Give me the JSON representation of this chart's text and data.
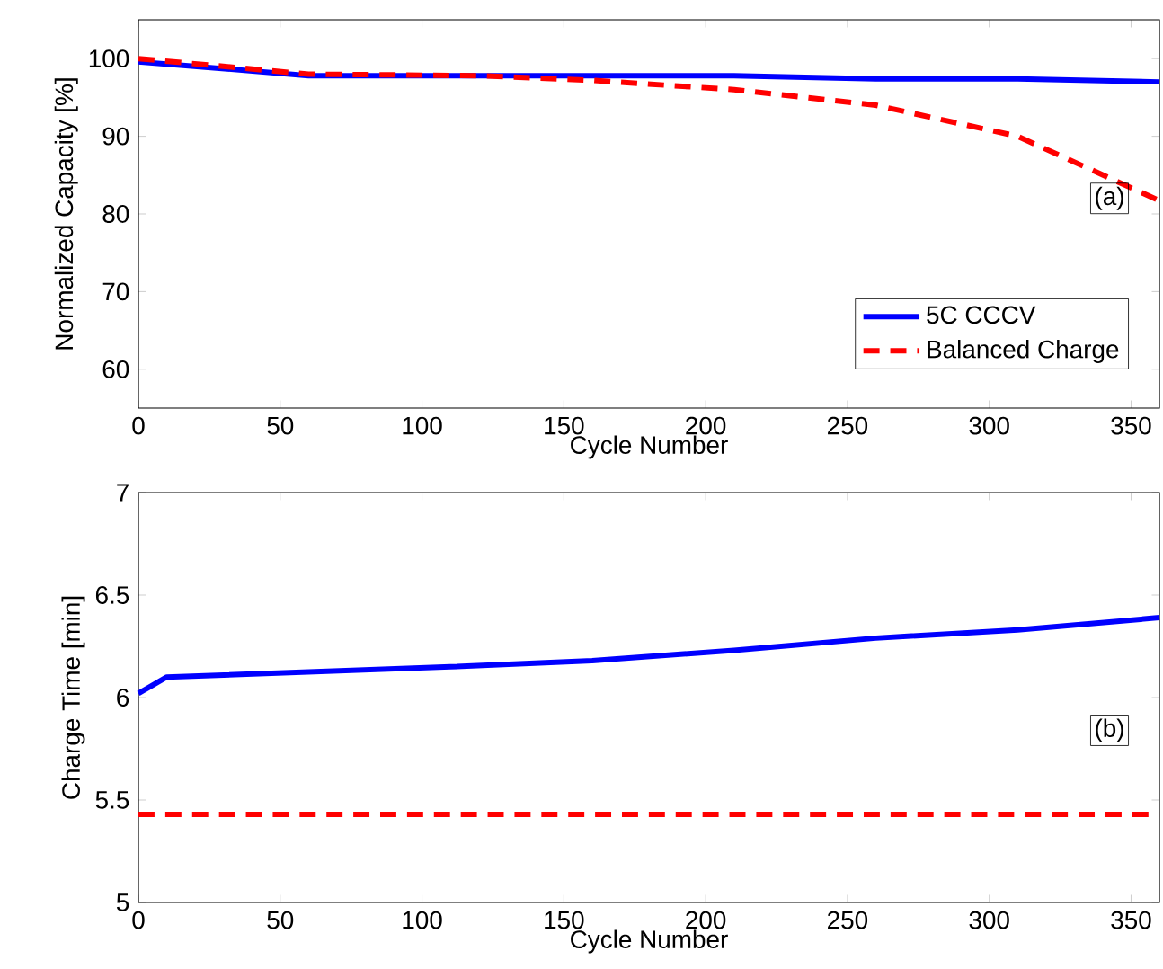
{
  "chart_data": [
    {
      "type": "line",
      "xlabel": "Cycle Number",
      "ylabel": "Normalized Capacity [%]",
      "xlim": [
        0,
        360
      ],
      "ylim": [
        55,
        105
      ],
      "xticks": [
        0,
        50,
        100,
        150,
        200,
        250,
        300,
        350
      ],
      "yticks": [
        60,
        70,
        80,
        90,
        100
      ],
      "legend": "bottom right",
      "grid": false,
      "annotations": [
        "(a)"
      ],
      "series": [
        {
          "name": "5C CCCV",
          "color": "#0000ff",
          "line_style": "solid",
          "x": [
            0,
            60,
            210,
            260,
            310,
            360
          ],
          "values": [
            99.6,
            97.8,
            97.8,
            97.4,
            97.4,
            97.0
          ]
        },
        {
          "name": "Balanced Charge",
          "color": "#ff0000",
          "line_style": "dashed",
          "x": [
            0,
            60,
            120,
            160,
            210,
            260,
            310,
            360
          ],
          "values": [
            100,
            98,
            97.8,
            97.2,
            96,
            94,
            90,
            81.7
          ]
        }
      ]
    },
    {
      "type": "line",
      "xlabel": "Cycle Number",
      "ylabel": "Charge Time [min]",
      "xlim": [
        0,
        360
      ],
      "ylim": [
        5,
        7
      ],
      "xticks": [
        0,
        50,
        100,
        150,
        200,
        250,
        300,
        350
      ],
      "yticks": [
        5,
        5.5,
        6,
        6.5,
        7
      ],
      "legend": false,
      "grid": false,
      "annotations": [
        "(b)"
      ],
      "series": [
        {
          "color": "#0000ff",
          "line_style": "solid",
          "x": [
            0,
            10,
            110,
            160,
            210,
            260,
            310,
            360
          ],
          "values": [
            6.02,
            6.1,
            6.15,
            6.18,
            6.23,
            6.29,
            6.33,
            6.39
          ]
        },
        {
          "color": "#ff0000",
          "line_style": "dashed",
          "x": [
            0,
            360
          ],
          "values": [
            5.43,
            5.43
          ]
        }
      ]
    }
  ]
}
